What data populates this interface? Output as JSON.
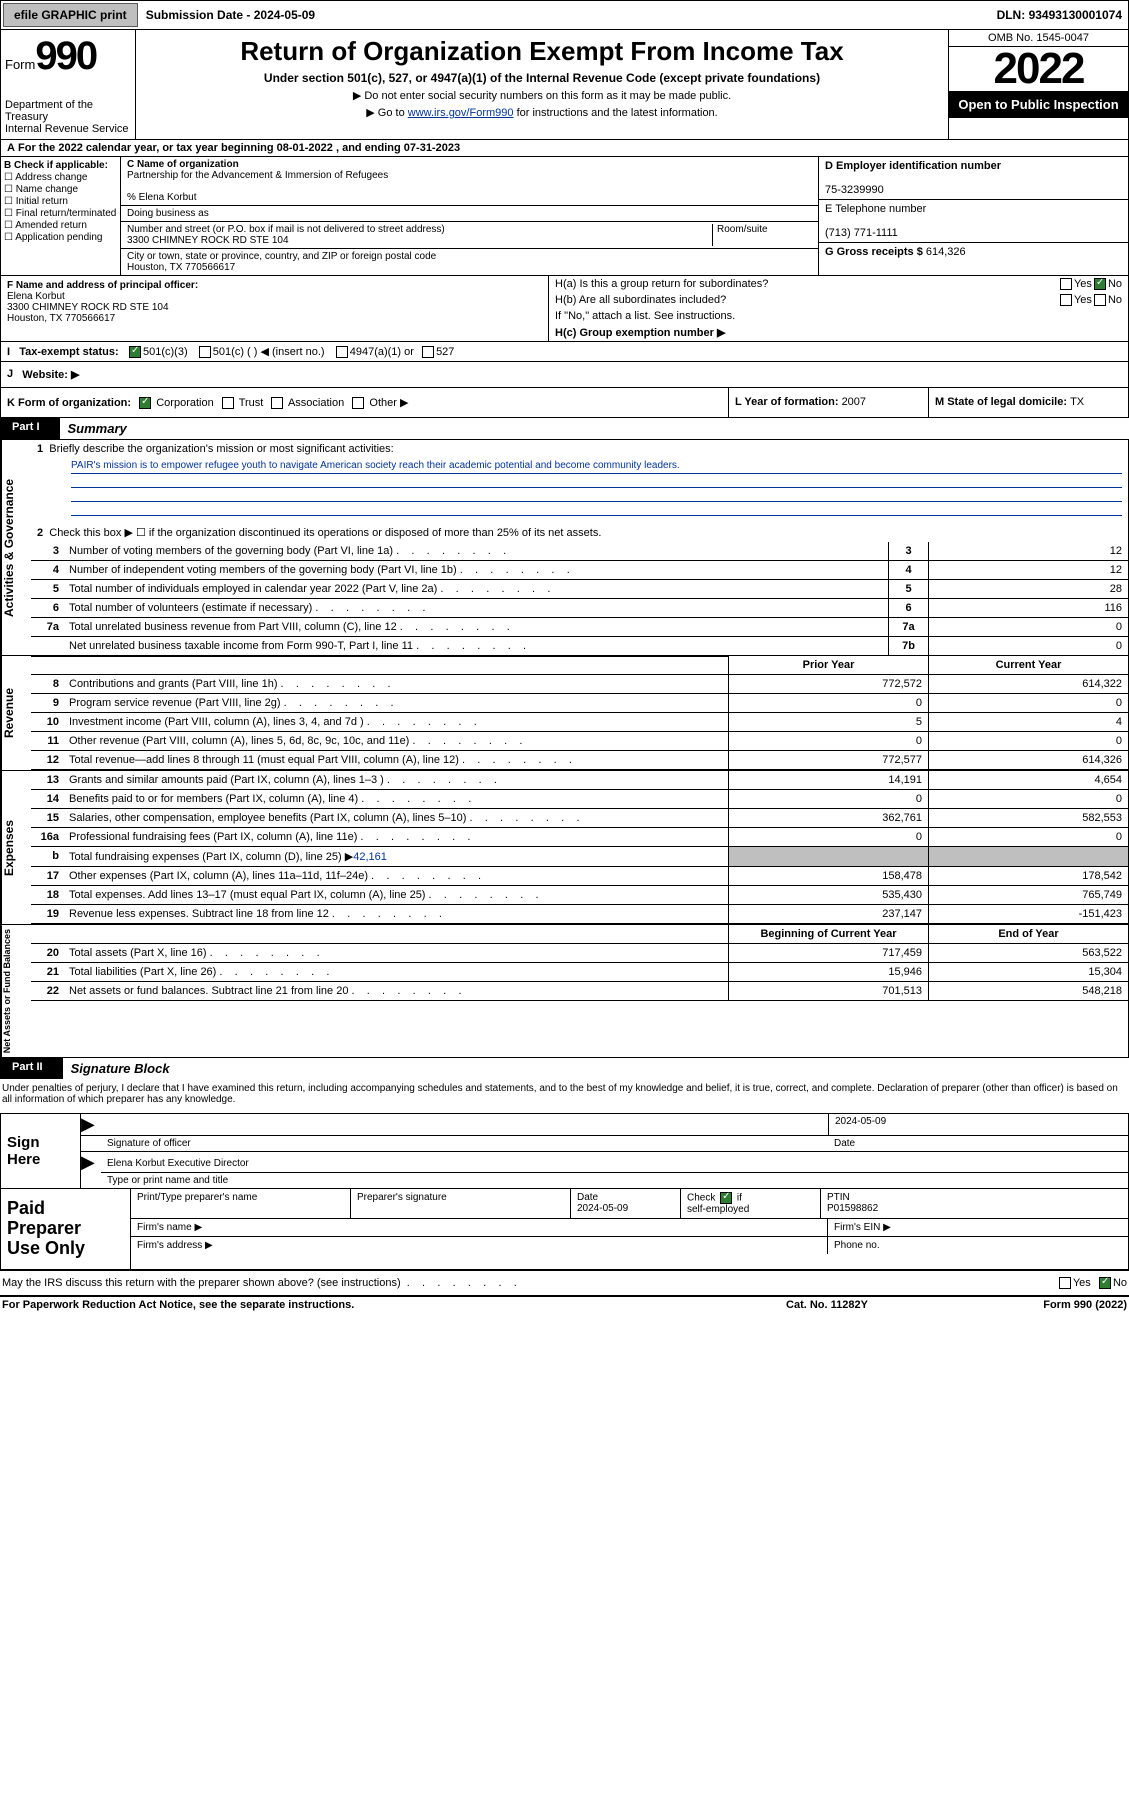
{
  "topbar": {
    "efile": "efile GRAPHIC print",
    "subdate_label": "Submission Date - ",
    "subdate": "2024-05-09",
    "dln_label": "DLN: ",
    "dln": "93493130001074"
  },
  "header": {
    "form_label": "Form",
    "form_num": "990",
    "dept": "Department of the Treasury\nInternal Revenue Service",
    "title": "Return of Organization Exempt From Income Tax",
    "sub": "Under section 501(c), 527, or 4947(a)(1) of the Internal Revenue Code (except private foundations)",
    "note1": "▶ Do not enter social security numbers on this form as it may be made public.",
    "note2_pre": "▶ Go to ",
    "note2_link": "www.irs.gov/Form990",
    "note2_post": " for instructions and the latest information.",
    "omb": "OMB No. 1545-0047",
    "year": "2022",
    "inspection": "Open to Public Inspection"
  },
  "period": {
    "text": "For the 2022 calendar year, or tax year beginning ",
    "begin": "08-01-2022",
    "mid": "   , and ending ",
    "end": "07-31-2023"
  },
  "sectionB": {
    "title": "B Check if applicable:",
    "items": [
      "Address change",
      "Name change",
      "Initial return",
      "Final return/terminated",
      "Amended return",
      "Application pending"
    ]
  },
  "sectionC": {
    "name_label": "C Name of organization",
    "name": "Partnership for the Advancement & Immersion of Refugees",
    "care": "% Elena Korbut",
    "dba_label": "Doing business as",
    "addr_label": "Number and street (or P.O. box if mail is not delivered to street address)",
    "room_label": "Room/suite",
    "addr": "3300 CHIMNEY ROCK RD STE 104",
    "city_label": "City or town, state or province, country, and ZIP or foreign postal code",
    "city": "Houston, TX  770566617"
  },
  "sectionD": {
    "label": "D Employer identification number",
    "ein": "75-3239990"
  },
  "sectionE": {
    "label": "E Telephone number",
    "phone": "(713) 771-1111"
  },
  "sectionG": {
    "label": "G Gross receipts $ ",
    "amount": "614,326"
  },
  "sectionF": {
    "label": "F Name and address of principal officer:",
    "name": "Elena Korbut",
    "addr1": "3300 CHIMNEY ROCK RD STE 104",
    "addr2": "Houston, TX  770566617"
  },
  "sectionH": {
    "a": "H(a)  Is this a group return for subordinates?",
    "b": "H(b)  Are all subordinates included?",
    "b_note": "If \"No,\" attach a list. See instructions.",
    "c": "H(c)  Group exemption number ▶",
    "yes": "Yes",
    "no": "No"
  },
  "taxStatus": {
    "label_i": "I",
    "label": "Tax-exempt status:",
    "opts": [
      "501(c)(3)",
      "501(c) (   ) ◀ (insert no.)",
      "4947(a)(1) or",
      "527"
    ]
  },
  "website": {
    "label": "J",
    "text": "Website: ▶"
  },
  "k": {
    "label": "K Form of organization:",
    "opts": [
      "Corporation",
      "Trust",
      "Association",
      "Other ▶"
    ]
  },
  "l": {
    "label": "L Year of formation: ",
    "val": "2007"
  },
  "m": {
    "label": "M State of legal domicile: ",
    "val": "TX"
  },
  "part1": {
    "num": "Part I",
    "title": "Summary"
  },
  "q1": {
    "num": "1",
    "text": "Briefly describe the organization's mission or most significant activities:",
    "mission": "PAIR's mission is to empower refugee youth to navigate American society reach their academic potential and become community leaders."
  },
  "q2": {
    "num": "2",
    "text": "Check this box ▶ ☐  if the organization discontinued its operations or disposed of more than 25% of its net assets."
  },
  "governance": {
    "label": "Activities & Governance",
    "rows": [
      {
        "num": "3",
        "text": "Number of voting members of the governing body (Part VI, line 1a)",
        "box": "3",
        "val": "12"
      },
      {
        "num": "4",
        "text": "Number of independent voting members of the governing body (Part VI, line 1b)",
        "box": "4",
        "val": "12"
      },
      {
        "num": "5",
        "text": "Total number of individuals employed in calendar year 2022 (Part V, line 2a)",
        "box": "5",
        "val": "28"
      },
      {
        "num": "6",
        "text": "Total number of volunteers (estimate if necessary)",
        "box": "6",
        "val": "116"
      },
      {
        "num": "7a",
        "text": "Total unrelated business revenue from Part VIII, column (C), line 12",
        "box": "7a",
        "val": "0"
      },
      {
        "num": "",
        "text": "Net unrelated business taxable income from Form 990-T, Part I, line 11",
        "box": "7b",
        "val": "0"
      }
    ]
  },
  "colhdr": {
    "prior": "Prior Year",
    "current": "Current Year",
    "boy": "Beginning of Current Year",
    "eoy": "End of Year"
  },
  "revenue": {
    "label": "Revenue",
    "rows": [
      {
        "num": "8",
        "text": "Contributions and grants (Part VIII, line 1h)",
        "v1": "772,572",
        "v2": "614,322"
      },
      {
        "num": "9",
        "text": "Program service revenue (Part VIII, line 2g)",
        "v1": "0",
        "v2": "0"
      },
      {
        "num": "10",
        "text": "Investment income (Part VIII, column (A), lines 3, 4, and 7d )",
        "v1": "5",
        "v2": "4"
      },
      {
        "num": "11",
        "text": "Other revenue (Part VIII, column (A), lines 5, 6d, 8c, 9c, 10c, and 11e)",
        "v1": "0",
        "v2": "0"
      },
      {
        "num": "12",
        "text": "Total revenue—add lines 8 through 11 (must equal Part VIII, column (A), line 12)",
        "v1": "772,577",
        "v2": "614,326"
      }
    ]
  },
  "expenses": {
    "label": "Expenses",
    "rows": [
      {
        "num": "13",
        "text": "Grants and similar amounts paid (Part IX, column (A), lines 1–3 )",
        "v1": "14,191",
        "v2": "4,654"
      },
      {
        "num": "14",
        "text": "Benefits paid to or for members (Part IX, column (A), line 4)",
        "v1": "0",
        "v2": "0"
      },
      {
        "num": "15",
        "text": "Salaries, other compensation, employee benefits (Part IX, column (A), lines 5–10)",
        "v1": "362,761",
        "v2": "582,553"
      },
      {
        "num": "16a",
        "text": "Professional fundraising fees (Part IX, column (A), line 11e)",
        "v1": "0",
        "v2": "0"
      }
    ],
    "row_b": {
      "num": "b",
      "text": "Total fundraising expenses (Part IX, column (D), line 25) ▶",
      "amt": "42,161"
    },
    "rows2": [
      {
        "num": "17",
        "text": "Other expenses (Part IX, column (A), lines 11a–11d, 11f–24e)",
        "v1": "158,478",
        "v2": "178,542"
      },
      {
        "num": "18",
        "text": "Total expenses. Add lines 13–17 (must equal Part IX, column (A), line 25)",
        "v1": "535,430",
        "v2": "765,749"
      },
      {
        "num": "19",
        "text": "Revenue less expenses. Subtract line 18 from line 12",
        "v1": "237,147",
        "v2": "-151,423"
      }
    ]
  },
  "netassets": {
    "label": "Net Assets or Fund Balances",
    "rows": [
      {
        "num": "20",
        "text": "Total assets (Part X, line 16)",
        "v1": "717,459",
        "v2": "563,522"
      },
      {
        "num": "21",
        "text": "Total liabilities (Part X, line 26)",
        "v1": "15,946",
        "v2": "15,304"
      },
      {
        "num": "22",
        "text": "Net assets or fund balances. Subtract line 21 from line 20",
        "v1": "701,513",
        "v2": "548,218"
      }
    ]
  },
  "part2": {
    "num": "Part II",
    "title": "Signature Block"
  },
  "sig": {
    "penalty": "Under penalties of perjury, I declare that I have examined this return, including accompanying schedules and statements, and to the best of my knowledge and belief, it is true, correct, and complete. Declaration of preparer (other than officer) is based on all information of which preparer has any knowledge.",
    "sign_here": "Sign Here",
    "sig_officer": "Signature of officer",
    "date": "Date",
    "sig_date": "2024-05-09",
    "name_title": "Elena Korbut  Executive Director",
    "type_name": "Type or print name and title"
  },
  "paid": {
    "label": "Paid Preparer Use Only",
    "h1": "Print/Type preparer's name",
    "h2": "Preparer's signature",
    "h3": "Date",
    "h3v": "2024-05-09",
    "h4": "Check ☑ if self-employed",
    "h5": "PTIN",
    "h5v": "P01598862",
    "firm_name": "Firm's name    ▶",
    "firm_ein": "Firm's EIN ▶",
    "firm_addr": "Firm's address ▶",
    "phone": "Phone no."
  },
  "footer": {
    "q": "May the IRS discuss this return with the preparer shown above? (see instructions)",
    "yes": "Yes",
    "no": "No",
    "paperwork": "For Paperwork Reduction Act Notice, see the separate instructions.",
    "cat": "Cat. No. 11282Y",
    "form": "Form 990 (2022)"
  }
}
